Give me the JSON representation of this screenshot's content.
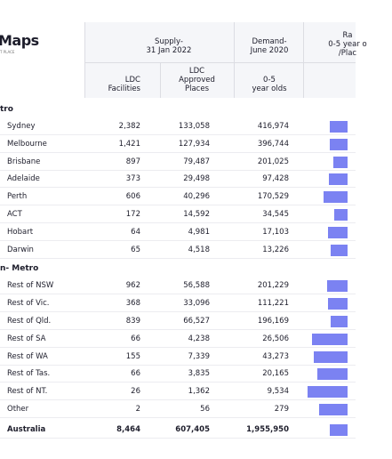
{
  "header": {
    "logo": "Maps",
    "tagline": "T PLACE",
    "groups": [
      {
        "line1": "Supply-",
        "line2": "31 Jan 2022"
      },
      {
        "line1": "Demand-",
        "line2": "June 2020"
      },
      {
        "line1": "Ra",
        "line2": "0-5 year o",
        "line3": "/Plac"
      }
    ],
    "columns": [
      {
        "line1": "LDC",
        "line2": "Facilities"
      },
      {
        "line1": "LDC",
        "line2": "Approved",
        "line3": "Places"
      },
      {
        "line1": "0-5",
        "line2": "year olds"
      }
    ]
  },
  "table": {
    "sections": [
      {
        "title": "tro",
        "rows": [
          {
            "name": "Sydney",
            "facilities": "2,382",
            "places": "133,058",
            "demand": "416,974",
            "ratio": 3.1
          },
          {
            "name": "Melbourne",
            "facilities": "1,421",
            "places": "127,934",
            "demand": "396,744",
            "ratio": 3.1
          },
          {
            "name": "Brisbane",
            "facilities": "897",
            "places": "79,487",
            "demand": "201,025",
            "ratio": 2.5
          },
          {
            "name": "Adelaide",
            "facilities": "373",
            "places": "29,498",
            "demand": "97,428",
            "ratio": 3.3
          },
          {
            "name": "Perth",
            "facilities": "606",
            "places": "40,296",
            "demand": "170,529",
            "ratio": 4.2
          },
          {
            "name": "ACT",
            "facilities": "172",
            "places": "14,592",
            "demand": "34,545",
            "ratio": 2.4
          },
          {
            "name": "Hobart",
            "facilities": "64",
            "places": "4,981",
            "demand": "17,103",
            "ratio": 3.4
          },
          {
            "name": "Darwin",
            "facilities": "65",
            "places": "4,518",
            "demand": "13,226",
            "ratio": 2.9
          }
        ]
      },
      {
        "title": "n- Metro",
        "rows": [
          {
            "name": "Rest of NSW",
            "facilities": "962",
            "places": "56,588",
            "demand": "201,229",
            "ratio": 3.6
          },
          {
            "name": "Rest of Vic.",
            "facilities": "368",
            "places": "33,096",
            "demand": "111,221",
            "ratio": 3.4
          },
          {
            "name": "Rest of Qld.",
            "facilities": "839",
            "places": "66,527",
            "demand": "196,169",
            "ratio": 2.9
          },
          {
            "name": "Rest of SA",
            "facilities": "66",
            "places": "4,238",
            "demand": "26,506",
            "ratio": 6.3
          },
          {
            "name": "Rest of WA",
            "facilities": "155",
            "places": "7,339",
            "demand": "43,273",
            "ratio": 5.9
          },
          {
            "name": "Rest of Tas.",
            "facilities": "66",
            "places": "3,835",
            "demand": "20,165",
            "ratio": 5.3
          },
          {
            "name": "Rest of NT.",
            "facilities": "26",
            "places": "1,362",
            "demand": "9,534",
            "ratio": 7.0
          },
          {
            "name": "Other",
            "facilities": "2",
            "places": "56",
            "demand": "279",
            "ratio": 5.0
          }
        ]
      }
    ],
    "total": {
      "name": "Australia",
      "facilities": "8,464",
      "places": "607,405",
      "demand": "1,955,950",
      "ratio": 3.2
    }
  }
}
